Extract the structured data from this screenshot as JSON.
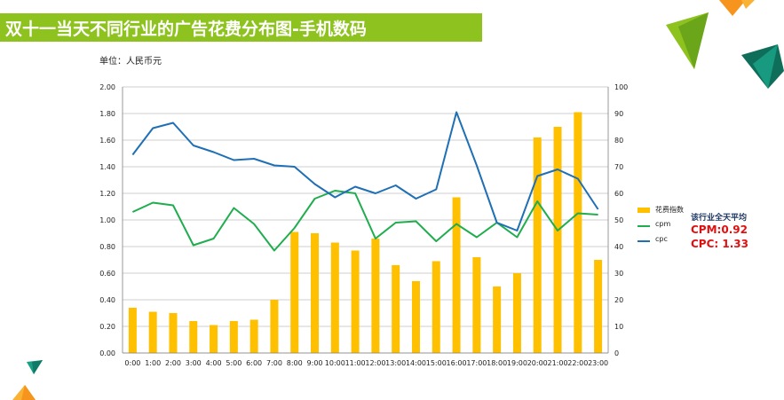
{
  "page": {
    "title": "双十一当天不同行业的广告花费分布图-手机数码",
    "unit_label": "单位：人民币元",
    "summary_title": "该行业全天平均",
    "cpm_summary": "CPM:0.92",
    "cpc_summary": "CPC: 1.33"
  },
  "colors": {
    "title_bar": "#8dc21f",
    "bar": "#ffc000",
    "cpm_line": "#1fad4e",
    "cpc_line": "#1f6fb5",
    "grid": "#bfbfbf"
  },
  "chart_data": {
    "type": "bar",
    "categories": [
      "0:00",
      "1:00",
      "2:00",
      "3:00",
      "4:00",
      "5:00",
      "6:00",
      "7:00",
      "8:00",
      "9:00",
      "10:00",
      "11:00",
      "12:00",
      "13:00",
      "14:00",
      "15:00",
      "16:00",
      "17:00",
      "18:00",
      "19:00",
      "20:00",
      "21:00",
      "22:00",
      "23:00"
    ],
    "y_ticks": [
      "0.00",
      "0.20",
      "0.40",
      "0.60",
      "0.80",
      "1.00",
      "1.20",
      "1.40",
      "1.60",
      "1.80",
      "2.00"
    ],
    "y2_ticks": [
      "0",
      "10",
      "20",
      "30",
      "40",
      "50",
      "60",
      "70",
      "80",
      "90",
      "100"
    ],
    "ylim": [
      0,
      2.0
    ],
    "y2lim": [
      0,
      100
    ],
    "grid": true,
    "legend_position": "right",
    "series": [
      {
        "name": "花费指数",
        "type": "bar",
        "axis": "right",
        "values": [
          17,
          15.5,
          15,
          12,
          10.5,
          12,
          12.5,
          20,
          45.5,
          45,
          41.5,
          38.5,
          43,
          33,
          27,
          34.5,
          58.5,
          36,
          25,
          30,
          81,
          85,
          90.5,
          35
        ]
      },
      {
        "name": "cpm",
        "type": "line",
        "axis": "left",
        "values": [
          1.06,
          1.13,
          1.11,
          0.81,
          0.86,
          1.09,
          0.97,
          0.77,
          0.94,
          1.16,
          1.22,
          1.2,
          0.86,
          0.98,
          0.99,
          0.84,
          0.97,
          0.87,
          0.98,
          0.87,
          1.14,
          0.92,
          1.05,
          1.04
        ]
      },
      {
        "name": "cpc",
        "type": "line",
        "axis": "left",
        "values": [
          1.49,
          1.69,
          1.73,
          1.56,
          1.51,
          1.45,
          1.46,
          1.41,
          1.4,
          1.27,
          1.17,
          1.25,
          1.2,
          1.26,
          1.16,
          1.23,
          1.81,
          1.41,
          0.98,
          0.92,
          1.33,
          1.38,
          1.31,
          1.08
        ]
      }
    ]
  }
}
